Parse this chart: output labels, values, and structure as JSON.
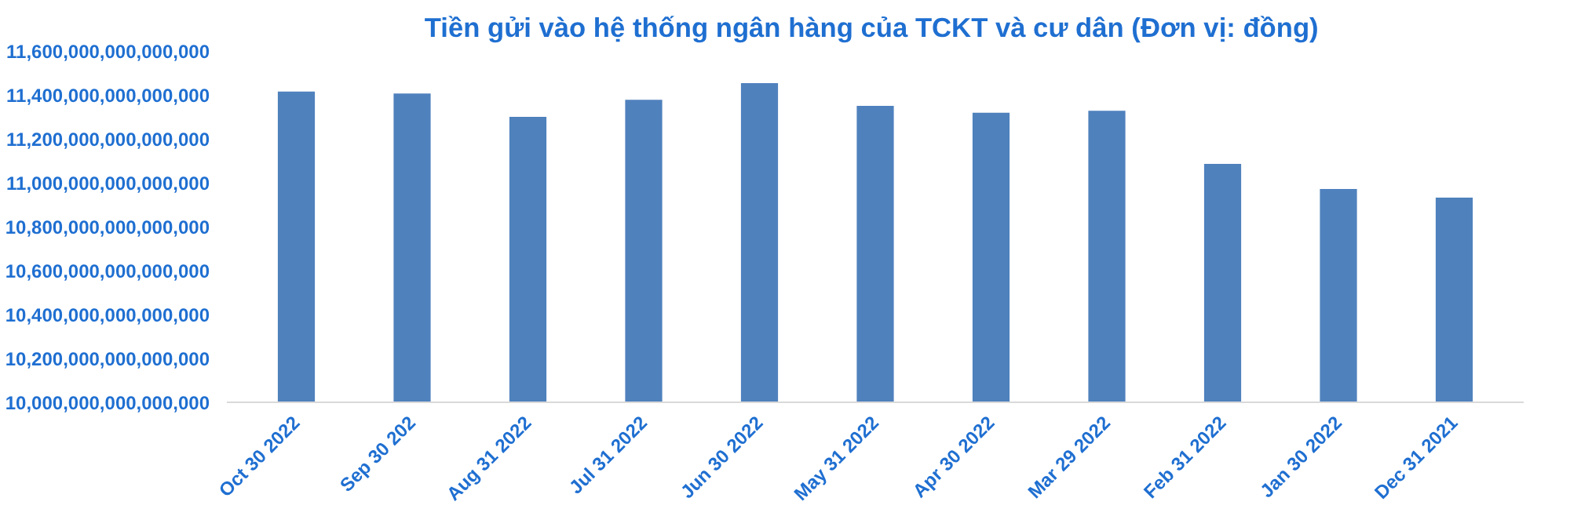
{
  "chart_data": {
    "type": "bar",
    "title": "Tiền gửi vào hệ thống ngân hàng  của TCKT và cư dân (Đơn vị: đồng)",
    "categories": [
      "Oct 30 2022",
      "Sep 30 202",
      "Aug 31 2022",
      "Jul 31 2022",
      "Jun 30 2022",
      "May 31 2022",
      "Apr 30 2022",
      "Mar 29 2022",
      "Feb 31 2022",
      "Jan 30 2022",
      "Dec 31 2021"
    ],
    "values": [
      11415000000000000,
      11406000000000000,
      11300000000000000,
      11378000000000000,
      11454000000000000,
      11350000000000000,
      11319000000000000,
      11328000000000000,
      11086000000000000,
      10971000000000000,
      10932000000000000
    ],
    "color": "#4f81bd",
    "ylim": [
      10000000000000000,
      11600000000000000
    ],
    "yticks": [
      {
        "value": 10000000000000000,
        "label": "10,000,000,000,000,000"
      },
      {
        "value": 10200000000000000,
        "label": "10,200,000,000,000,000"
      },
      {
        "value": 10400000000000000,
        "label": "10,400,000,000,000,000"
      },
      {
        "value": 10600000000000000,
        "label": "10,600,000,000,000,000"
      },
      {
        "value": 10800000000000000,
        "label": "10,800,000,000,000,000"
      },
      {
        "value": 11000000000000000,
        "label": "11,000,000,000,000,000"
      },
      {
        "value": 11200000000000000,
        "label": "11,200,000,000,000,000"
      },
      {
        "value": 11400000000000000,
        "label": "11,400,000,000,000,000"
      },
      {
        "value": 11600000000000000,
        "label": "11,600,000,000,000,000"
      }
    ],
    "grid": false
  }
}
